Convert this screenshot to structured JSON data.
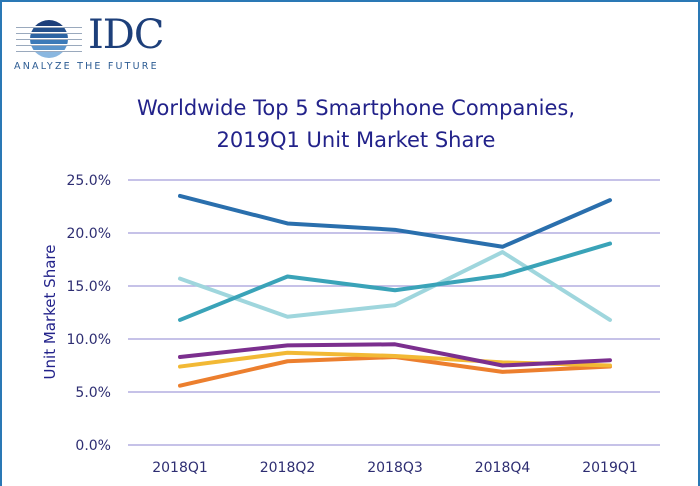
{
  "logo": {
    "brand": "IDC",
    "tagline": "ANALYZE THE FUTURE"
  },
  "colors": {
    "frame": "#2a78b5",
    "gridline": "#b3aee0",
    "title": "#22228a"
  },
  "chart_data": {
    "type": "line",
    "title_line1": "Worldwide Top 5 Smartphone Companies,",
    "title_line2": "2019Q1 Unit Market Share",
    "xlabel": "",
    "ylabel": "Unit Market Share",
    "categories": [
      "2018Q1",
      "2018Q2",
      "2018Q3",
      "2018Q4",
      "2019Q1"
    ],
    "yticks": [
      "0.0%",
      "5.0%",
      "10.0%",
      "15.0%",
      "20.0%",
      "25.0%"
    ],
    "ytick_values": [
      0,
      5,
      10,
      15,
      20,
      25
    ],
    "ylim": [
      0,
      25
    ],
    "grid": true,
    "legend": "none",
    "series": [
      {
        "name": "series-dark-blue",
        "color": "#2a6fad",
        "values": [
          23.5,
          20.9,
          20.3,
          18.7,
          23.1
        ]
      },
      {
        "name": "series-teal",
        "color": "#3aa3b8",
        "values": [
          11.8,
          15.9,
          14.6,
          16.0,
          19.0
        ]
      },
      {
        "name": "series-light-blue",
        "color": "#9fd6dd",
        "values": [
          15.7,
          12.1,
          13.2,
          18.2,
          11.8
        ]
      },
      {
        "name": "series-purple",
        "color": "#7b2f8e",
        "values": [
          8.3,
          9.4,
          9.5,
          7.5,
          8.0
        ]
      },
      {
        "name": "series-yellow",
        "color": "#f2b935",
        "values": [
          7.4,
          8.7,
          8.4,
          7.8,
          7.5
        ]
      },
      {
        "name": "series-orange",
        "color": "#ec7f2e",
        "values": [
          5.6,
          7.9,
          8.3,
          6.9,
          7.4
        ]
      }
    ]
  }
}
